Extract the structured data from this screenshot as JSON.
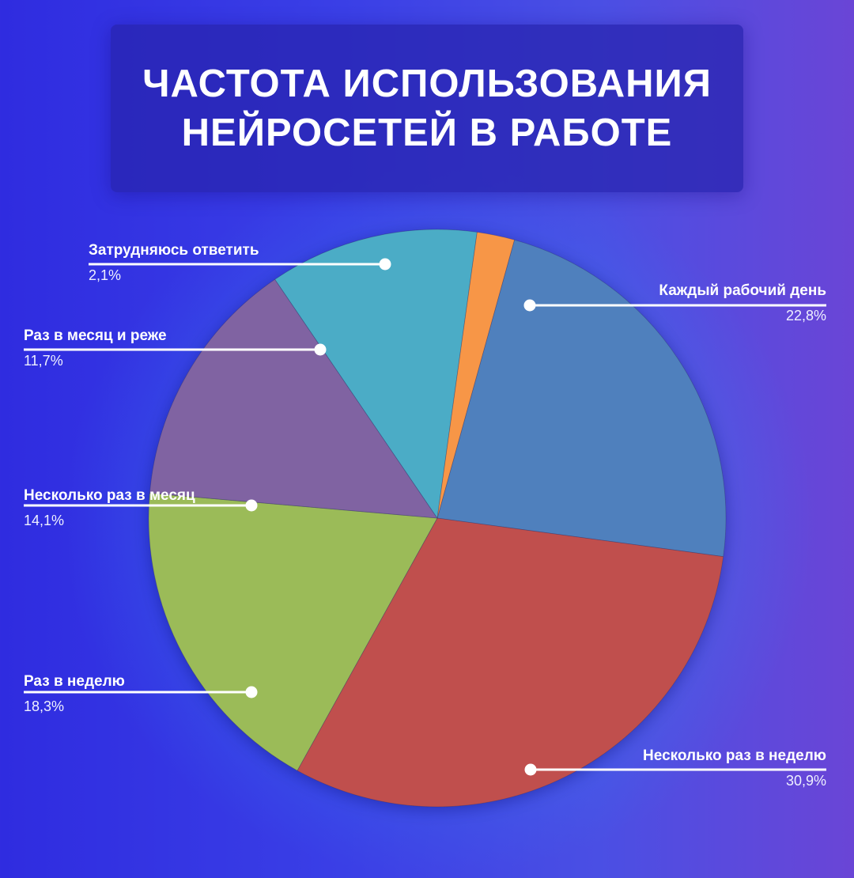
{
  "title_lines": [
    "ЧАСТОТА ИСПОЛЬЗОВАНИЯ",
    "НЕЙРОСЕТЕЙ В РАБОТЕ"
  ],
  "chart_data": {
    "type": "pie",
    "title": "ЧАСТОТА ИСПОЛЬЗОВАНИЯ НЕЙРОСЕТЕЙ В РАБОТЕ",
    "slices": [
      {
        "label": "Каждый рабочий день",
        "value": 22.8,
        "value_label": "22,8%",
        "color": "#4f80bd"
      },
      {
        "label": "Несколько раз в неделю",
        "value": 30.9,
        "value_label": "30,9%",
        "color": "#c0504e"
      },
      {
        "label": "Раз в неделю",
        "value": 18.3,
        "value_label": "18,3%",
        "color": "#9bbb59"
      },
      {
        "label": "Несколько раз в месяц",
        "value": 14.1,
        "value_label": "14,1%",
        "color": "#8064a2"
      },
      {
        "label": "Раз в месяц и реже",
        "value": 11.7,
        "value_label": "11,7%",
        "color": "#4bacc6"
      },
      {
        "label": "Затрудняюсь ответить",
        "value": 2.1,
        "value_label": "2,1%",
        "color": "#f79646"
      }
    ],
    "start_angle_deg": 15.5,
    "direction": "clockwise",
    "legend": "callout-labels"
  }
}
